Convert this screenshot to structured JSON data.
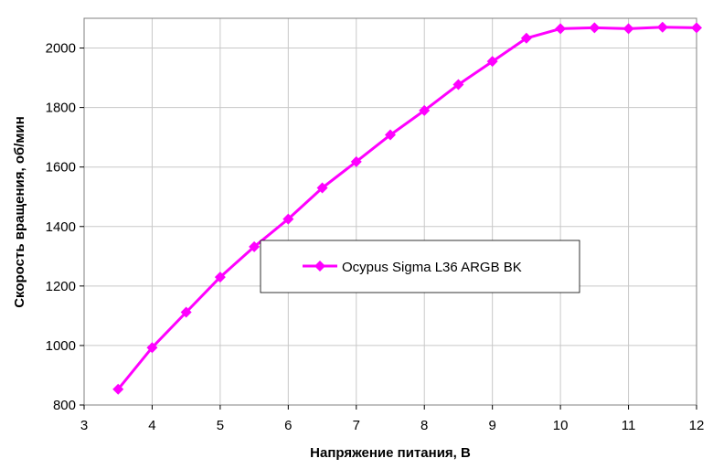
{
  "chart_data": {
    "type": "line",
    "title": "",
    "xlabel": "Напряжение питания, В",
    "ylabel": "Скорость вращения, об/мин",
    "xlim": [
      3,
      12
    ],
    "ylim": [
      800,
      2100
    ],
    "xticks": [
      3,
      4,
      5,
      6,
      7,
      8,
      9,
      10,
      11,
      12
    ],
    "yticks": [
      800,
      1000,
      1200,
      1400,
      1600,
      1800,
      2000
    ],
    "xtick_labels": [
      "3",
      "4",
      "5",
      "6",
      "7",
      "8",
      "9",
      "10",
      "11",
      "12"
    ],
    "ytick_labels": [
      "800",
      "1000",
      "1200",
      "1400",
      "1600",
      "1800",
      "2000"
    ],
    "grid": true,
    "legend_position": "center",
    "series": [
      {
        "name": "Ocypus Sigma L36 ARGB BK",
        "color": "#ff00ff",
        "marker": "diamond",
        "x": [
          3.5,
          4,
          4.5,
          5,
          5.5,
          6,
          6.5,
          7,
          7.5,
          8,
          8.5,
          9,
          9.5,
          10,
          10.5,
          11,
          11.5,
          12
        ],
        "y": [
          853,
          993,
          1112,
          1230,
          1332,
          1425,
          1530,
          1618,
          1708,
          1790,
          1877,
          1955,
          2033,
          2065,
          2068,
          2065,
          2070,
          2068
        ]
      }
    ]
  }
}
